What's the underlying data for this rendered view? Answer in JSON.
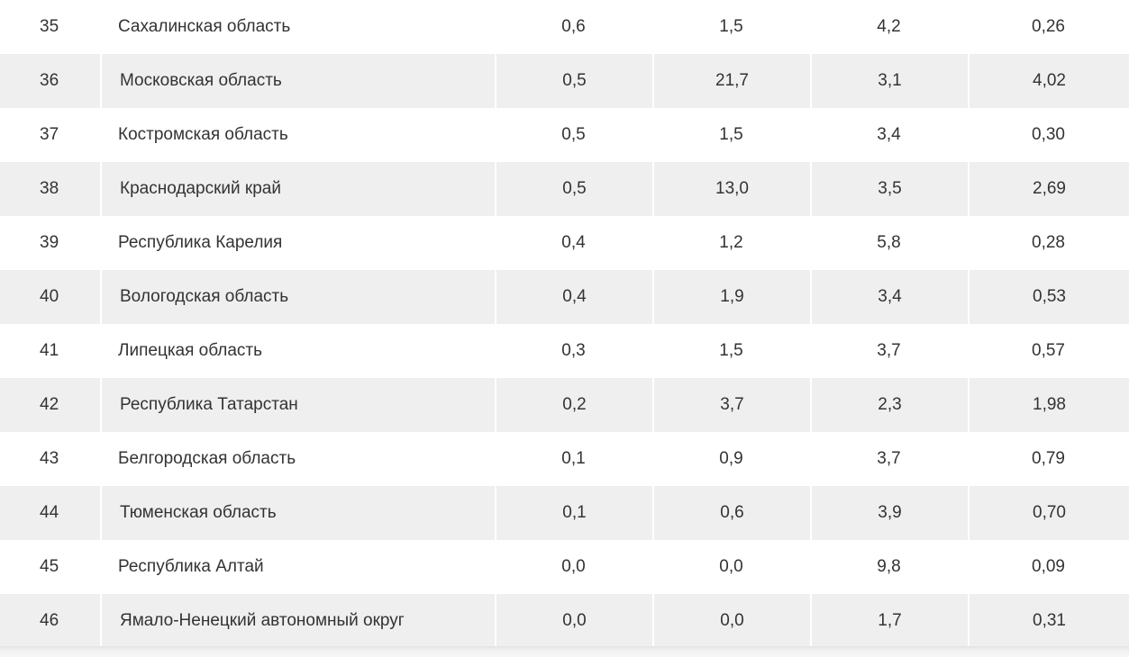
{
  "table": {
    "rows": [
      {
        "num": "35",
        "name": "Сахалинская область",
        "v1": "0,6",
        "v2": "1,5",
        "v3": "4,2",
        "v4": "0,26"
      },
      {
        "num": "36",
        "name": "Московская область",
        "v1": "0,5",
        "v2": "21,7",
        "v3": "3,1",
        "v4": "4,02"
      },
      {
        "num": "37",
        "name": "Костромская область",
        "v1": "0,5",
        "v2": "1,5",
        "v3": "3,4",
        "v4": "0,30"
      },
      {
        "num": "38",
        "name": "Краснодарский край",
        "v1": "0,5",
        "v2": "13,0",
        "v3": "3,5",
        "v4": "2,69"
      },
      {
        "num": "39",
        "name": "Республика Карелия",
        "v1": "0,4",
        "v2": "1,2",
        "v3": "5,8",
        "v4": "0,28"
      },
      {
        "num": "40",
        "name": "Вологодская область",
        "v1": "0,4",
        "v2": "1,9",
        "v3": "3,4",
        "v4": "0,53"
      },
      {
        "num": "41",
        "name": "Липецкая область",
        "v1": "0,3",
        "v2": "1,5",
        "v3": "3,7",
        "v4": "0,57"
      },
      {
        "num": "42",
        "name": "Республика Татарстан",
        "v1": "0,2",
        "v2": "3,7",
        "v3": "2,3",
        "v4": "1,98"
      },
      {
        "num": "43",
        "name": "Белгородская область",
        "v1": "0,1",
        "v2": "0,9",
        "v3": "3,7",
        "v4": "0,79"
      },
      {
        "num": "44",
        "name": "Тюменская область",
        "v1": "0,1",
        "v2": "0,6",
        "v3": "3,9",
        "v4": "0,70"
      },
      {
        "num": "45",
        "name": "Республика Алтай",
        "v1": "0,0",
        "v2": "0,0",
        "v3": "9,8",
        "v4": "0,09"
      },
      {
        "num": "46",
        "name": "Ямало-Ненецкий автономный округ",
        "v1": "0,0",
        "v2": "0,0",
        "v3": "1,7",
        "v4": "0,31"
      }
    ]
  },
  "colors": {
    "text": "#333333",
    "row_alt_bg": "#efefef",
    "row_bg": "#ffffff"
  }
}
